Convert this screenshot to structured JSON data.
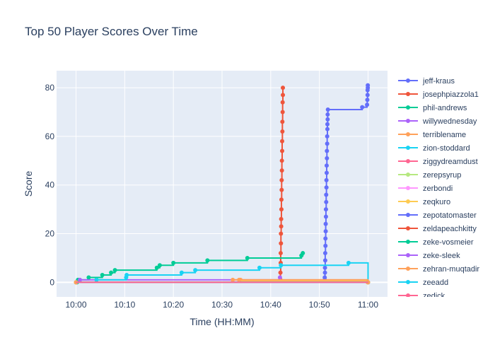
{
  "chart_data": {
    "type": "line",
    "title": "Top 50 Player Scores Over Time",
    "xlabel": "Time (HH:MM)",
    "ylabel": "Score",
    "x_ticks": [
      "10:00",
      "10:10",
      "10:20",
      "10:30",
      "10:40",
      "10:50",
      "11:00"
    ],
    "x_tick_minutes": [
      0,
      10,
      20,
      30,
      40,
      50,
      60
    ],
    "xlim_minutes": [
      -4,
      64
    ],
    "y_ticks": [
      0,
      20,
      40,
      60,
      80
    ],
    "ylim": [
      -6,
      87
    ],
    "grid": true,
    "legend_position": "right",
    "series": [
      {
        "name": "jeff-kraus",
        "color": "#636efa",
        "step": true,
        "points": [
          [
            51.1,
            1
          ],
          [
            51.1,
            2
          ],
          [
            51.15,
            4
          ],
          [
            51.15,
            6
          ],
          [
            51.2,
            9
          ],
          [
            51.2,
            12
          ],
          [
            51.25,
            15
          ],
          [
            51.25,
            18
          ],
          [
            51.3,
            21
          ],
          [
            51.3,
            24
          ],
          [
            51.35,
            27
          ],
          [
            51.35,
            30
          ],
          [
            51.4,
            33
          ],
          [
            51.4,
            36
          ],
          [
            51.45,
            39
          ],
          [
            51.45,
            42
          ],
          [
            51.5,
            45
          ],
          [
            51.5,
            48
          ],
          [
            51.55,
            51
          ],
          [
            51.55,
            54
          ],
          [
            51.6,
            57
          ],
          [
            51.6,
            60
          ],
          [
            51.65,
            63
          ],
          [
            51.65,
            65
          ],
          [
            51.7,
            67
          ],
          [
            51.7,
            69
          ],
          [
            51.75,
            71
          ],
          [
            58.8,
            72
          ],
          [
            59.8,
            73
          ],
          [
            59.85,
            75
          ],
          [
            59.9,
            77
          ],
          [
            59.9,
            79
          ],
          [
            59.95,
            80
          ],
          [
            59.95,
            81
          ]
        ]
      },
      {
        "name": "josephpiazzola1",
        "color": "#ef553b",
        "step": true,
        "points": [
          [
            42.0,
            1
          ],
          [
            42.0,
            4
          ],
          [
            42.05,
            8
          ],
          [
            42.05,
            12
          ],
          [
            42.1,
            16
          ],
          [
            42.1,
            20
          ],
          [
            42.15,
            23
          ],
          [
            42.15,
            26
          ],
          [
            42.2,
            30
          ],
          [
            42.2,
            34
          ],
          [
            42.25,
            38
          ],
          [
            42.25,
            42
          ],
          [
            42.3,
            46
          ],
          [
            42.3,
            50
          ],
          [
            42.35,
            54
          ],
          [
            42.35,
            58
          ],
          [
            42.4,
            62
          ],
          [
            42.4,
            66
          ],
          [
            42.45,
            70
          ],
          [
            42.45,
            74
          ],
          [
            42.5,
            77
          ],
          [
            42.5,
            80
          ]
        ]
      },
      {
        "name": "phil-andrews",
        "color": "#00cc96",
        "step": true,
        "points": [
          [
            0.2,
            0
          ],
          [
            0.4,
            1
          ],
          [
            2.6,
            2
          ],
          [
            5.4,
            3
          ],
          [
            7.2,
            4
          ],
          [
            8.0,
            5
          ],
          [
            16.6,
            6
          ],
          [
            17.2,
            7
          ],
          [
            20.0,
            8
          ],
          [
            27.0,
            9
          ],
          [
            35.2,
            10
          ],
          [
            46.3,
            11
          ],
          [
            46.6,
            12
          ]
        ]
      },
      {
        "name": "willywednesday",
        "color": "#ab63fa",
        "step": true,
        "points": [
          [
            0,
            0
          ],
          [
            0.8,
            1
          ],
          [
            41.9,
            2
          ]
        ]
      },
      {
        "name": "terriblename",
        "color": "#ffa15a",
        "step": true,
        "points": [
          [
            0,
            0
          ],
          [
            33.8,
            1
          ],
          [
            60.0,
            0
          ]
        ]
      },
      {
        "name": "zion-stoddard",
        "color": "#19d3f3",
        "step": true,
        "points": [
          [
            0,
            0
          ],
          [
            4.2,
            1
          ],
          [
            10.3,
            2
          ],
          [
            10.4,
            3
          ],
          [
            21.7,
            4
          ],
          [
            24.5,
            5
          ],
          [
            37.7,
            6
          ],
          [
            42.1,
            7
          ],
          [
            56.0,
            8
          ],
          [
            60.0,
            0
          ]
        ]
      },
      {
        "name": "ziggydreamdust",
        "color": "#ff6692",
        "step": true,
        "points": [
          [
            0,
            0
          ],
          [
            60,
            0
          ]
        ]
      },
      {
        "name": "zerepsyrup",
        "color": "#b6e880",
        "step": true,
        "points": [
          [
            0,
            0
          ],
          [
            60,
            0
          ]
        ]
      },
      {
        "name": "zerbondi",
        "color": "#ff97ff",
        "step": true,
        "points": [
          [
            0,
            0
          ],
          [
            60,
            0
          ]
        ]
      },
      {
        "name": "zeqkuro",
        "color": "#fecb52",
        "step": true,
        "points": [
          [
            0,
            0
          ],
          [
            33.9,
            0.5
          ],
          [
            59.9,
            0
          ]
        ]
      },
      {
        "name": "zepotatomaster",
        "color": "#636efa",
        "step": true,
        "points": [
          [
            0,
            0
          ],
          [
            60,
            0
          ]
        ]
      },
      {
        "name": "zeldapeachkitty",
        "color": "#ef553b",
        "step": true,
        "points": [
          [
            0,
            0
          ],
          [
            60,
            0
          ]
        ]
      },
      {
        "name": "zeke-vosmeier",
        "color": "#00cc96",
        "step": true,
        "points": [
          [
            0,
            0
          ],
          [
            60,
            0
          ]
        ]
      },
      {
        "name": "zeke-sleek",
        "color": "#ab63fa",
        "step": true,
        "points": [
          [
            0,
            0
          ],
          [
            60,
            0
          ]
        ]
      },
      {
        "name": "zehran-muqtadir",
        "color": "#ffa15a",
        "step": true,
        "points": [
          [
            0,
            0
          ],
          [
            32.2,
            1
          ],
          [
            33.5,
            1
          ],
          [
            60,
            0
          ]
        ]
      },
      {
        "name": "zeeadd",
        "color": "#19d3f3",
        "step": true,
        "points": [
          [
            0,
            0
          ],
          [
            60,
            0
          ]
        ]
      },
      {
        "name": "zedick",
        "color": "#ff6692",
        "step": true,
        "points": [
          [
            0,
            0
          ],
          [
            60,
            0
          ]
        ]
      }
    ]
  }
}
